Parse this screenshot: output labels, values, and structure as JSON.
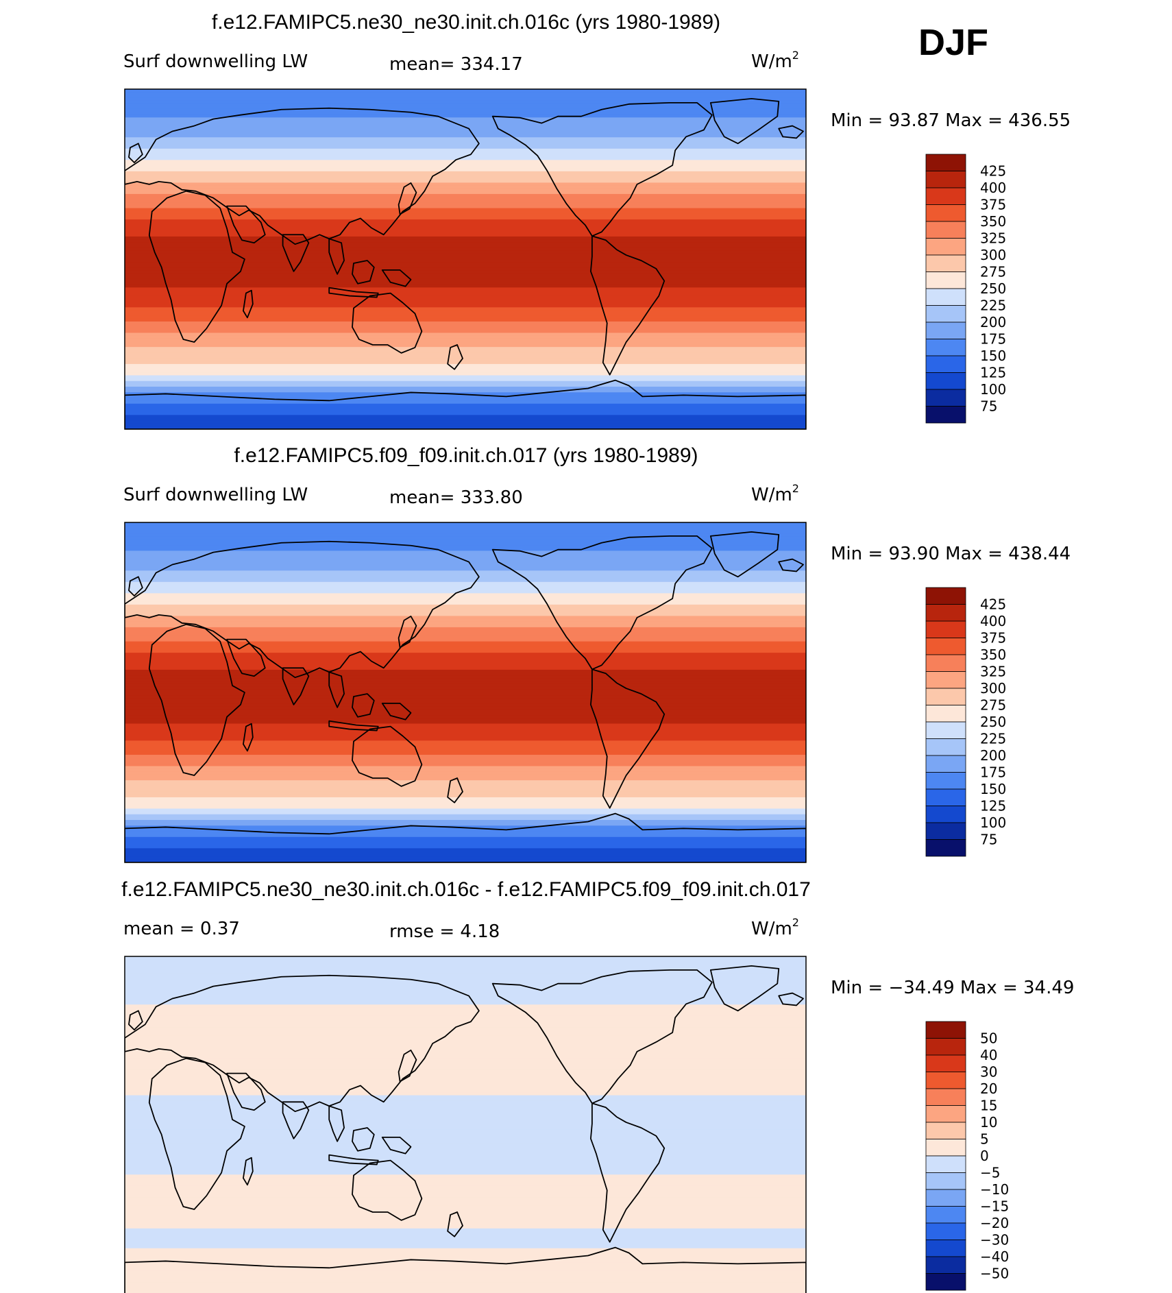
{
  "season": "DJF",
  "colors": {
    "abs_scale": [
      "#08106b",
      "#0b2ca0",
      "#1449cf",
      "#2a66e8",
      "#4d87f2",
      "#7aa6f4",
      "#a6c5f8",
      "#cfe0fb",
      "#fde7d9",
      "#fcc8ab",
      "#fca581",
      "#f7805a",
      "#ee5a2f",
      "#d9381a",
      "#b8250d",
      "#8e1305"
    ],
    "diff_scale": [
      "#08106b",
      "#0b2ca0",
      "#1449cf",
      "#2a66e8",
      "#4d87f2",
      "#7aa6f4",
      "#a6c5f8",
      "#cfe0fb",
      "#fde7d9",
      "#fcc8ab",
      "#fca581",
      "#f7805a",
      "#ee5a2f",
      "#d9381a",
      "#b8250d",
      "#8e1305"
    ],
    "ocean_neutral": "#fde7d9"
  },
  "panels": [
    {
      "title": "f.e12.FAMIPC5.ne30_ne30.init.ch.016c (yrs 1980-1989)",
      "left_label": "Surf downwelling LW",
      "center_label": "mean=  334.17",
      "units": "W/m",
      "units_sup": "2",
      "stats": "Min =   93.87  Max  =  436.55",
      "colorbar_ticks": [
        "425",
        "400",
        "375",
        "350",
        "325",
        "300",
        "275",
        "250",
        "225",
        "200",
        "175",
        "150",
        "125",
        "100",
        "75"
      ]
    },
    {
      "title": "f.e12.FAMIPC5.f09_f09.init.ch.017 (yrs 1980-1989)",
      "left_label": "Surf downwelling LW",
      "center_label": "mean=  333.80",
      "units": "W/m",
      "units_sup": "2",
      "stats": "Min =   93.90  Max  =  438.44",
      "colorbar_ticks": [
        "425",
        "400",
        "375",
        "350",
        "325",
        "300",
        "275",
        "250",
        "225",
        "200",
        "175",
        "150",
        "125",
        "100",
        "75"
      ]
    },
    {
      "title": "f.e12.FAMIPC5.ne30_ne30.init.ch.016c - f.e12.FAMIPC5.f09_f09.init.ch.017",
      "left_label": "mean =     0.37",
      "center_label": "rmse =     4.18",
      "units": "W/m",
      "units_sup": "2",
      "stats": "Min = −34.49  Max =   34.49",
      "colorbar_ticks": [
        "50",
        "40",
        "30",
        "20",
        "15",
        "10",
        "5",
        "0",
        "−5",
        "−10",
        "−15",
        "−20",
        "−30",
        "−40",
        "−50"
      ]
    }
  ],
  "chart_data": [
    {
      "type": "heatmap",
      "title": "f.e12.FAMIPC5.ne30_ne30.init.ch.016c (yrs 1980-1989)",
      "variable": "Surf downwelling LW",
      "units": "W/m2",
      "season": "DJF",
      "mean": 334.17,
      "min": 93.87,
      "max": 436.55,
      "contour_levels": [
        75,
        100,
        125,
        150,
        175,
        200,
        225,
        250,
        275,
        300,
        325,
        350,
        375,
        400,
        425
      ],
      "zonal_profile": {
        "lat": [
          90,
          80,
          70,
          60,
          50,
          40,
          30,
          20,
          10,
          0,
          -10,
          -20,
          -30,
          -40,
          -50,
          -60,
          -70,
          -80,
          -90
        ],
        "value": [
          160,
          170,
          180,
          220,
          260,
          300,
          340,
          380,
          405,
          415,
          410,
          390,
          360,
          320,
          290,
          260,
          180,
          130,
          110
        ]
      }
    },
    {
      "type": "heatmap",
      "title": "f.e12.FAMIPC5.f09_f09.init.ch.017 (yrs 1980-1989)",
      "variable": "Surf downwelling LW",
      "units": "W/m2",
      "season": "DJF",
      "mean": 333.8,
      "min": 93.9,
      "max": 438.44,
      "contour_levels": [
        75,
        100,
        125,
        150,
        175,
        200,
        225,
        250,
        275,
        300,
        325,
        350,
        375,
        400,
        425
      ],
      "zonal_profile": {
        "lat": [
          90,
          80,
          70,
          60,
          50,
          40,
          30,
          20,
          10,
          0,
          -10,
          -20,
          -30,
          -40,
          -50,
          -60,
          -70,
          -80,
          -90
        ],
        "value": [
          160,
          170,
          180,
          220,
          260,
          300,
          340,
          380,
          405,
          418,
          412,
          392,
          360,
          320,
          290,
          260,
          180,
          130,
          110
        ]
      }
    },
    {
      "type": "heatmap",
      "title": "f.e12.FAMIPC5.ne30_ne30.init.ch.016c - f.e12.FAMIPC5.f09_f09.init.ch.017",
      "units": "W/m2",
      "mean": 0.37,
      "rmse": 4.18,
      "min": -34.49,
      "max": 34.49,
      "contour_levels": [
        -50,
        -40,
        -30,
        -20,
        -15,
        -10,
        -5,
        0,
        5,
        10,
        15,
        20,
        30,
        40,
        50
      ],
      "zonal_profile": {
        "lat": [
          90,
          80,
          70,
          60,
          50,
          40,
          30,
          20,
          10,
          0,
          -10,
          -20,
          -30,
          -40,
          -50,
          -60,
          -70,
          -80,
          -90
        ],
        "value": [
          -2,
          -2,
          -1,
          1,
          2,
          4,
          3,
          1,
          -2,
          -2,
          -3,
          -1,
          1,
          2,
          1,
          -2,
          3,
          1,
          0
        ]
      }
    }
  ]
}
